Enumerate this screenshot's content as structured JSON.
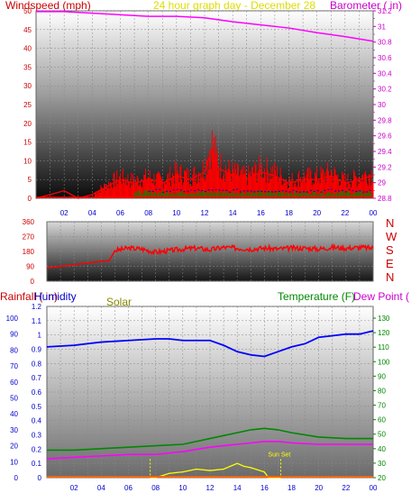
{
  "header": {
    "windspeed_label": "Windspeed (mph)",
    "title": "24 hour graph day - December 28",
    "barometer_label": "Barometer ( in)"
  },
  "panel3_labels": {
    "rainfall": "Rainfall ( in)",
    "humidity": "Humidity",
    "solar": "Solar",
    "temperature": "Temperature (F)",
    "dew_point": "Dew Point ("
  },
  "annotations": {
    "sunset": "Sun Set"
  },
  "colors": {
    "wind": "#ff0000",
    "gust_base": "#0000cc",
    "wind_avg": "#008800",
    "barometer": "#ff00ff",
    "direction": "#ff0000",
    "humidity": "#0000ff",
    "temperature": "#008800",
    "dewpoint": "#ff00ff",
    "solar": "#ffff00",
    "rain": "#ff6600",
    "sun_lines": "#ffff00",
    "grid": "#888888"
  },
  "x_ticks": [
    "02",
    "04",
    "06",
    "08",
    "10",
    "12",
    "14",
    "16",
    "18",
    "20",
    "22",
    "00"
  ],
  "chart_data": [
    {
      "type": "line",
      "x_unit": "hour",
      "x_range": [
        0,
        24
      ],
      "left_axis": {
        "ticks": [
          "0",
          "5",
          "10",
          "15",
          "20",
          "25",
          "30",
          "35",
          "40",
          "45",
          "50"
        ],
        "range": [
          0,
          50
        ]
      },
      "right_axis": {
        "ticks": [
          "28.8",
          "29",
          "29.2",
          "29.4",
          "29.6",
          "29.8",
          "30",
          "30.2",
          "30.4",
          "30.6",
          "30.8",
          "31",
          "31.2"
        ],
        "range": [
          28.8,
          31.2
        ],
        "tick_step": 0.2
      },
      "series": [
        {
          "key": "barometer",
          "axis": "right",
          "x": [
            0,
            2,
            4,
            6,
            8,
            10,
            12,
            14,
            16,
            18,
            20,
            22,
            24
          ],
          "y": [
            31.19,
            31.19,
            31.17,
            31.15,
            31.13,
            31.13,
            31.11,
            31.06,
            31.02,
            30.98,
            30.92,
            30.87,
            30.81
          ]
        },
        {
          "key": "windspeed",
          "axis": "left",
          "x": [
            0,
            1,
            2,
            3,
            4,
            5,
            6,
            7,
            8,
            9,
            10,
            11,
            12,
            12.5,
            13,
            14,
            15,
            16,
            17,
            18,
            19,
            20,
            21,
            22,
            23,
            24
          ],
          "y": [
            0,
            1,
            2,
            0,
            1,
            3,
            5,
            4,
            5,
            4,
            6,
            5,
            7,
            13,
            8,
            6,
            5,
            7,
            6,
            4,
            5,
            5,
            6,
            4,
            5,
            6
          ]
        }
      ]
    },
    {
      "type": "line",
      "x_unit": "hour",
      "x_range": [
        0,
        24
      ],
      "left_axis": {
        "ticks": [
          "0",
          "90",
          "180",
          "270",
          "360"
        ],
        "range": [
          0,
          360
        ]
      },
      "right_axis": {
        "ticks": [
          "N",
          "W",
          "S",
          "E",
          "N"
        ]
      },
      "series": [
        {
          "key": "wind_direction",
          "axis": "left",
          "x": [
            0,
            1,
            2,
            3,
            4,
            4.6,
            5,
            6,
            7,
            8,
            9,
            10,
            11,
            12,
            13,
            14,
            15,
            16,
            17,
            18,
            19,
            20,
            21,
            22,
            23,
            24
          ],
          "y": [
            80,
            90,
            100,
            110,
            120,
            125,
            185,
            200,
            195,
            175,
            185,
            195,
            200,
            190,
            205,
            200,
            195,
            200,
            195,
            200,
            200,
            195,
            205,
            200,
            205,
            200
          ]
        }
      ]
    },
    {
      "type": "line",
      "x_unit": "hour",
      "x_range": [
        0,
        24
      ],
      "rain_axis": {
        "ticks": [
          "0",
          "0.1",
          "0.2",
          "0.3",
          "0.4",
          "0.5",
          "0.6",
          "0.7",
          "0.8",
          "0.9",
          "1",
          "1.1",
          "1.2"
        ],
        "range": [
          0,
          1.2
        ]
      },
      "humidity_axis": {
        "ticks": [
          "0",
          "10",
          "20",
          "30",
          "40",
          "50",
          "60",
          "70",
          "80",
          "90",
          "100"
        ],
        "range": [
          0,
          100
        ]
      },
      "temperature_axis": {
        "ticks": [
          "20",
          "30",
          "40",
          "50",
          "60",
          "70",
          "80",
          "90",
          "100",
          "110",
          "120",
          "130"
        ],
        "range": [
          20,
          130
        ]
      },
      "sunset_hour": 17.2,
      "sun_line_hours": [
        7.6,
        17.2
      ],
      "series": [
        {
          "key": "humidity",
          "axis": "humidity",
          "x": [
            0,
            2,
            4,
            6,
            8,
            9,
            10,
            11,
            12,
            13,
            14,
            15,
            16,
            17,
            18,
            19,
            20,
            21,
            22,
            23,
            24
          ],
          "y": [
            82,
            83,
            85,
            86,
            87,
            87,
            86,
            86,
            86,
            83,
            79,
            77,
            76,
            79,
            82,
            84,
            88,
            89,
            90,
            90,
            92
          ]
        },
        {
          "key": "temperature",
          "axis": "temperature",
          "x": [
            0,
            2,
            4,
            6,
            8,
            10,
            12,
            13,
            14,
            15,
            16,
            17,
            18,
            20,
            22,
            24
          ],
          "y": [
            39,
            39,
            40,
            41,
            42,
            43,
            47,
            49,
            51,
            53,
            54,
            53,
            51,
            48,
            47,
            47
          ]
        },
        {
          "key": "dewpoint",
          "axis": "temperature",
          "x": [
            0,
            2,
            4,
            6,
            8,
            10,
            12,
            14,
            16,
            17,
            18,
            20,
            22,
            24
          ],
          "y": [
            33,
            34,
            35,
            36,
            36,
            38,
            41,
            43,
            45,
            45,
            44,
            43,
            43,
            43
          ]
        },
        {
          "key": "solar",
          "axis": "rain",
          "x": [
            7.6,
            8,
            9,
            10,
            11,
            12,
            13,
            14,
            14.5,
            15,
            16,
            16.3,
            17.2
          ],
          "y": [
            0,
            0,
            0.03,
            0.04,
            0.06,
            0.05,
            0.06,
            0.1,
            0.08,
            0.07,
            0.04,
            0,
            0
          ]
        },
        {
          "key": "rainfall",
          "axis": "rain",
          "x": [
            0,
            24
          ],
          "y": [
            0,
            0
          ]
        }
      ]
    }
  ]
}
